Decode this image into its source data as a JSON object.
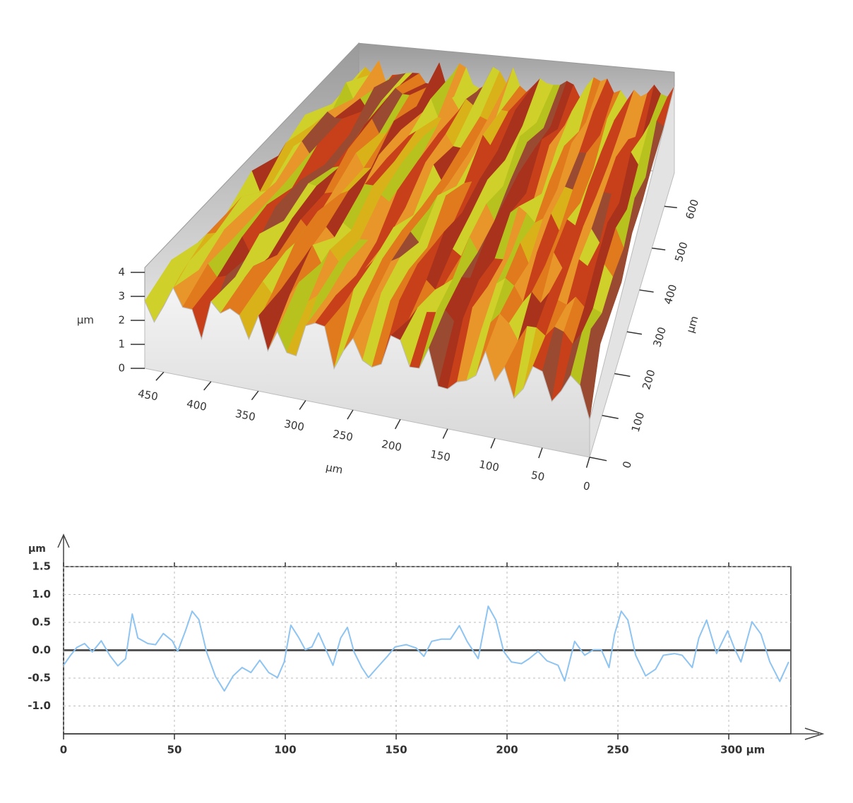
{
  "chart_data": [
    {
      "type": "surface3d",
      "xlabel": "µm",
      "ylabel": "µm",
      "zlabel": "µm",
      "xlim": [
        0,
        470
      ],
      "xticks": [
        0,
        50,
        100,
        150,
        200,
        250,
        300,
        350,
        400,
        450
      ],
      "ylim": [
        0,
        680
      ],
      "yticks": [
        0,
        100,
        200,
        300,
        400,
        500,
        600
      ],
      "zlim": [
        0,
        4
      ],
      "zticks": [
        0,
        1,
        2,
        3,
        4
      ]
    },
    {
      "type": "line",
      "ylabel": "µm",
      "xlim": [
        0,
        328
      ],
      "ylim": [
        -1.5,
        1.5
      ],
      "xticks": [
        0,
        50,
        100,
        150,
        200,
        250,
        {
          "value": 300,
          "label": "300 µm"
        }
      ],
      "yticks": [
        1.5,
        {
          "value": 1,
          "label": "1.0"
        },
        0.5,
        {
          "value": 0,
          "label": "0.0"
        },
        -0.5,
        {
          "value": -1,
          "label": "-1.0"
        }
      ],
      "grid": true,
      "zero_line": true,
      "series": [
        {
          "color": "#8ec4f2",
          "x": [
            0,
            3,
            6,
            9.5,
            13,
            17,
            21,
            24.5,
            28,
            31,
            33.5,
            38,
            41.5,
            45,
            49,
            51.5,
            55,
            58,
            61,
            64.5,
            68.5,
            72.5,
            76.5,
            80.5,
            84.5,
            88.5,
            92.5,
            96.5,
            99.5,
            102.5,
            106,
            109,
            112,
            115,
            118,
            121.5,
            125,
            128,
            131,
            134.5,
            137.5,
            141.5,
            146,
            149.5,
            154.5,
            159,
            162.5,
            166,
            170.5,
            174.5,
            178.5,
            182,
            187,
            191.5,
            195,
            198.5,
            202,
            206.5,
            210,
            214,
            218,
            223,
            226,
            230.5,
            235,
            239,
            242.5,
            246,
            248.5,
            251.5,
            254.5,
            258,
            262.5,
            267,
            270.5,
            275.5,
            279,
            283.5,
            286.5,
            290,
            294.5,
            299.5,
            302.5,
            305.5,
            310.5,
            314.5,
            318.5,
            323,
            327
          ],
          "values": [
            -0.27,
            -0.1,
            0.05,
            0.12,
            -0.03,
            0.17,
            -0.1,
            -0.28,
            -0.15,
            0.65,
            0.22,
            0.12,
            0.1,
            0.3,
            0.17,
            -0.02,
            0.35,
            0.7,
            0.55,
            -0.03,
            -0.47,
            -0.73,
            -0.46,
            -0.31,
            -0.4,
            -0.18,
            -0.4,
            -0.49,
            -0.21,
            0.45,
            0.23,
            0.01,
            0.06,
            0.31,
            0.04,
            -0.27,
            0.22,
            0.41,
            -0.03,
            -0.31,
            -0.49,
            -0.31,
            -0.11,
            0.06,
            0.1,
            0.04,
            -0.11,
            0.16,
            0.2,
            0.2,
            0.44,
            0.16,
            -0.15,
            0.79,
            0.54,
            -0.02,
            -0.21,
            -0.24,
            -0.15,
            -0.02,
            -0.19,
            -0.27,
            -0.55,
            0.16,
            -0.09,
            0.01,
            0.01,
            -0.31,
            0.29,
            0.7,
            0.54,
            -0.09,
            -0.46,
            -0.34,
            -0.09,
            -0.06,
            -0.09,
            -0.31,
            0.22,
            0.54,
            -0.06,
            0.35,
            0.04,
            -0.21,
            0.51,
            0.29,
            -0.21,
            -0.56,
            -0.21
          ]
        }
      ]
    }
  ]
}
